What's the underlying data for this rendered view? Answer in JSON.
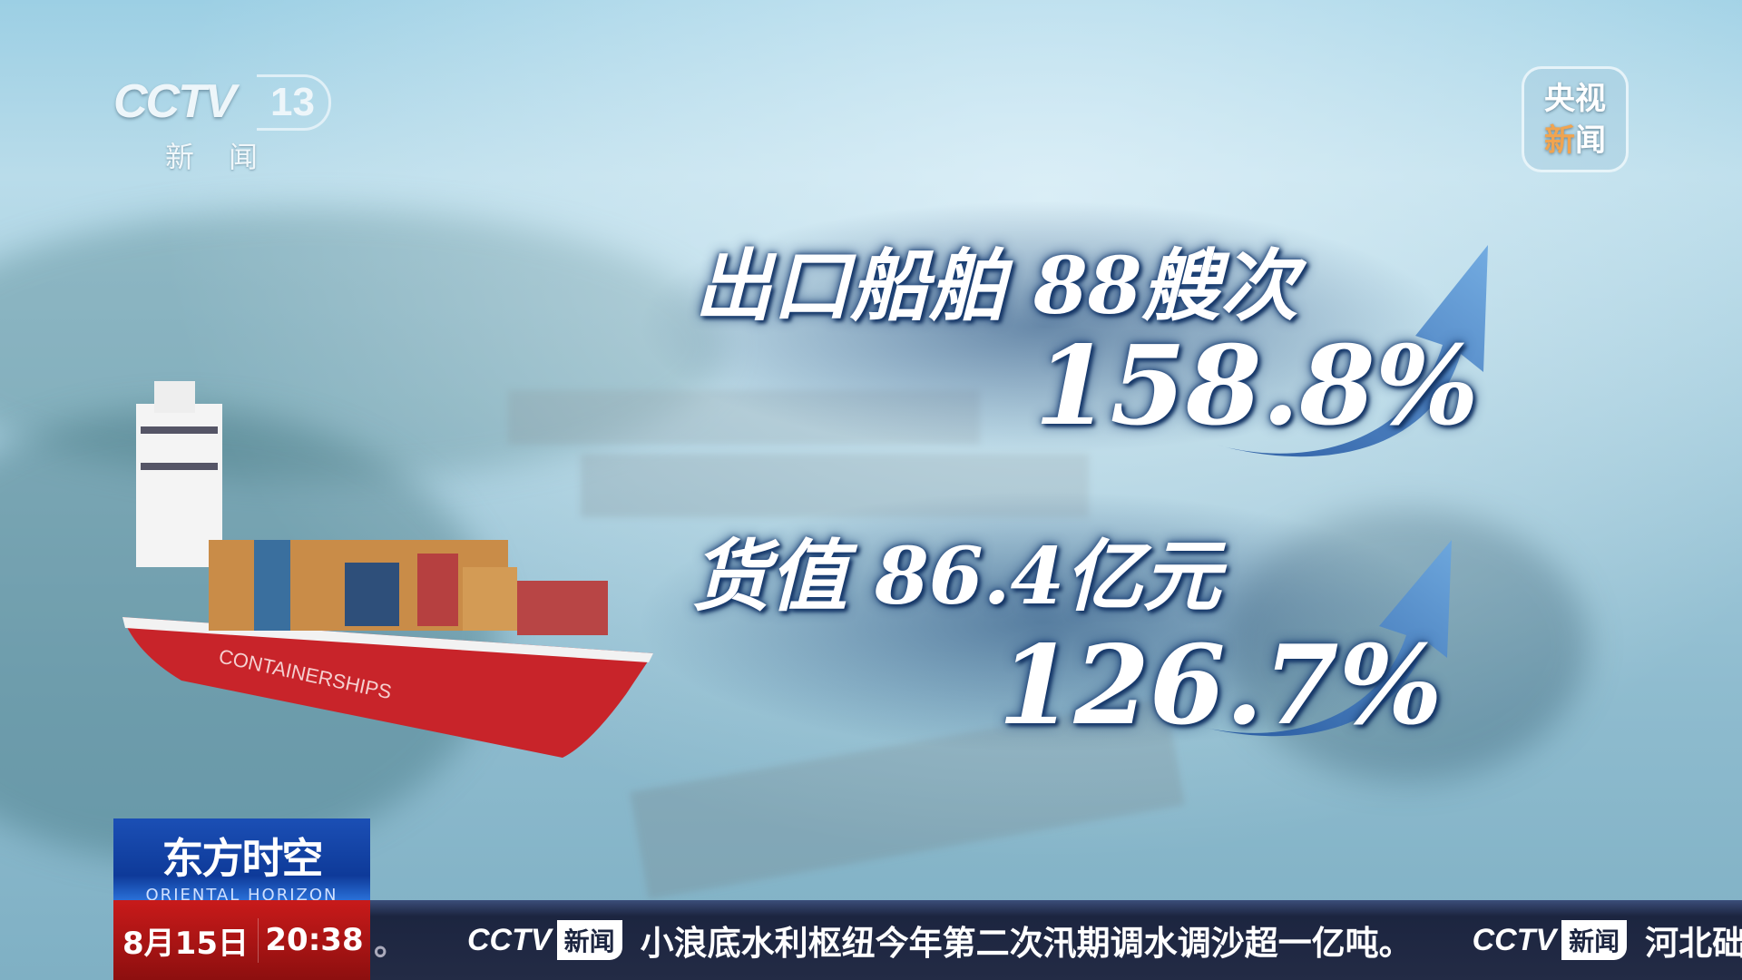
{
  "channel_logo": {
    "brand": "CCTV",
    "number": "13",
    "subtitle": "新闻"
  },
  "corner_badge": {
    "line1": "央视",
    "line2_a": "新",
    "line2_b": "闻"
  },
  "stats": {
    "ships_label": "出口船舶 88艘次",
    "ships_growth": "158.8%",
    "value_label": "货值 86.4亿元",
    "value_growth": "126.7%"
  },
  "ship_text": "CONTAINERSHIPS",
  "program": {
    "title": "东方时空",
    "english": "ORIENTAL HORIZON"
  },
  "datetime": {
    "date": "8月15日",
    "time": "20:38"
  },
  "ticker": {
    "prev_fragment": "。",
    "logo_brand": "CCTV",
    "logo_news": "新闻",
    "headline": "小浪底水利枢纽今年第二次汛期调水调沙超一亿吨。",
    "next_fragment": "河北础"
  },
  "colors": {
    "accent_orange": "#f0a450",
    "ticker_bg": "#1c2540",
    "date_red": "#c81a1a",
    "program_blue": "#1b4fb5"
  }
}
